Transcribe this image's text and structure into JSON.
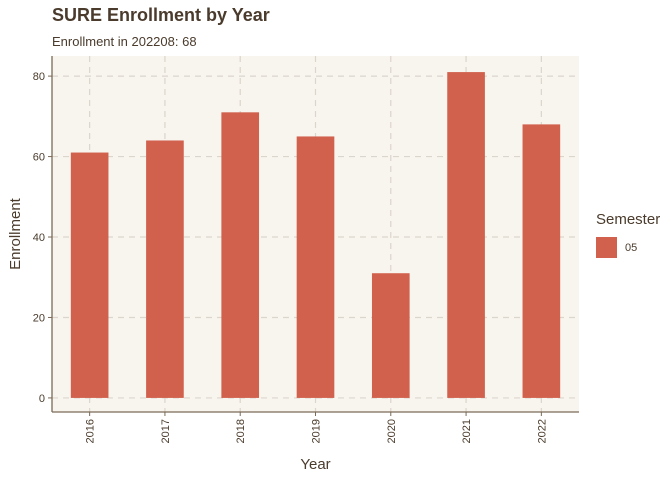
{
  "chart_data": {
    "type": "bar",
    "title": "SURE Enrollment by Year",
    "subtitle": "Enrollment in 202208: 68",
    "xlabel": "Year",
    "ylabel": "Enrollment",
    "categories": [
      "2016",
      "2017",
      "2018",
      "2019",
      "2020",
      "2021",
      "2022"
    ],
    "series": [
      {
        "name": "05",
        "values": [
          61,
          64,
          71,
          65,
          31,
          81,
          68
        ]
      }
    ],
    "ylim": [
      -3.5,
      85
    ],
    "yticks": [
      0,
      20,
      40,
      60,
      80
    ],
    "grid": true,
    "legend": {
      "title": "Semester",
      "position": "right"
    },
    "colors": {
      "bar": "#d1604d",
      "panel": "#f8f5ef",
      "grid": "#dbd5cc",
      "axis": "#7a6a58",
      "text": "#4a3b2c"
    }
  }
}
